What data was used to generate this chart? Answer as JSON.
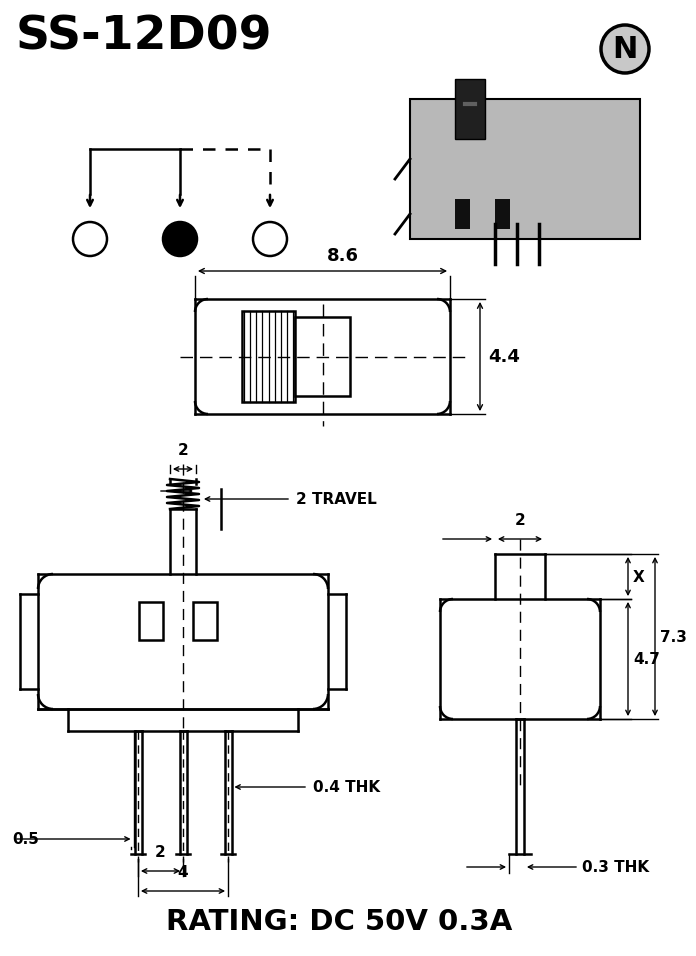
{
  "title": "SS-12D09",
  "rating": "RATING: DC 50V 0.3A",
  "bg_color": "#ffffff",
  "line_color": "#000000",
  "dim_86": "8.6",
  "dim_44": "4.4",
  "dim_2a": "2",
  "dim_2travel": "2 TRAVEL",
  "dim_04thk": "0.4 THK",
  "dim_05": "0.5",
  "dim_2b": "2",
  "dim_4": "4",
  "dim_2c": "2",
  "dim_47": "4.7",
  "dim_73": "7.3",
  "dim_03thk": "0.3 THK",
  "dim_x": "X"
}
